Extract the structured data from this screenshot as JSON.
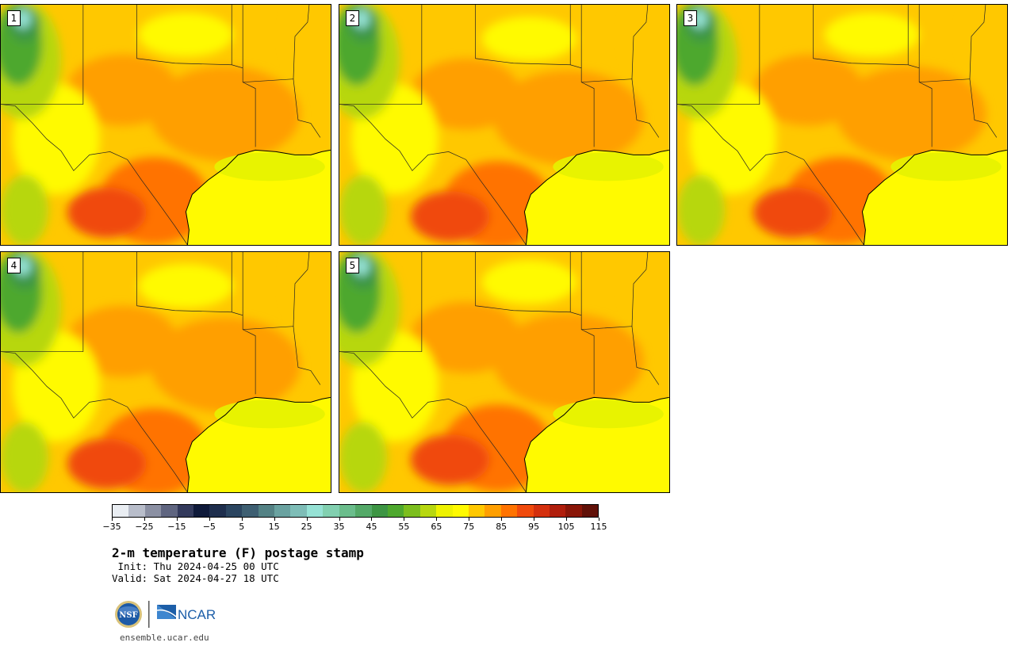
{
  "panels": [
    {
      "label": "1",
      "variant": 0
    },
    {
      "label": "2",
      "variant": 1
    },
    {
      "label": "3",
      "variant": 2
    },
    {
      "label": "4",
      "variant": 3
    },
    {
      "label": "5",
      "variant": 4
    }
  ],
  "colorbar": {
    "colors": [
      "#e9edf2",
      "#b8bdca",
      "#8b90a3",
      "#5f6580",
      "#333a5c",
      "#0f1a3a",
      "#1e2e4d",
      "#2b4560",
      "#3e5f72",
      "#548285",
      "#6aa2a0",
      "#7ebdb7",
      "#96e2d5",
      "#82d0b0",
      "#6bbd8c",
      "#54a968",
      "#3d9544",
      "#4ea82e",
      "#7cbe1e",
      "#b7d710",
      "#eef200",
      "#fffa00",
      "#ffc800",
      "#ff9f00",
      "#ff7300",
      "#f04a0c",
      "#d4300e",
      "#b01e0c",
      "#8a1608",
      "#611108"
    ],
    "tick_labels": [
      "−35",
      "−25",
      "−15",
      "−5",
      "5",
      "15",
      "25",
      "35",
      "45",
      "55",
      "65",
      "75",
      "85",
      "95",
      "105",
      "115"
    ]
  },
  "title": "2-m temperature (F) postage stamp",
  "init": " Init: Thu 2024-04-25 00 UTC",
  "valid": "Valid: Sat 2024-04-27 18 UTC",
  "logos": {
    "nsf": "NSF",
    "ncar": "NCAR"
  },
  "website": "ensemble.ucar.edu"
}
